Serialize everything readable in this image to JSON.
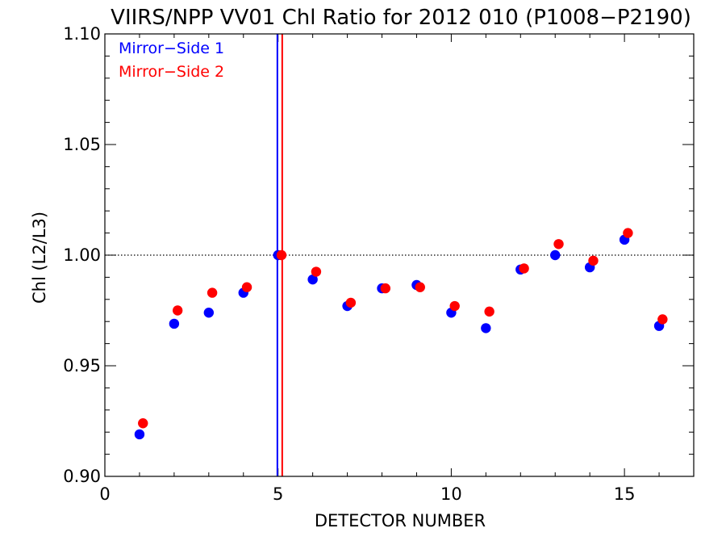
{
  "chart_data": {
    "type": "scatter",
    "title": "VIIRS/NPP VV01 Chl Ratio for 2012 010 (P1008−P2190)",
    "xlabel": "DETECTOR NUMBER",
    "ylabel": "Chl (L2/L3)",
    "xlim": [
      0,
      17
    ],
    "ylim": [
      0.9,
      1.1
    ],
    "x_ticks": [
      0,
      5,
      10,
      15
    ],
    "x_tick_labels": [
      "0",
      "5",
      "10",
      "15"
    ],
    "y_ticks": [
      0.9,
      0.95,
      1.0,
      1.05,
      1.1
    ],
    "y_tick_labels": [
      "0.90",
      "0.95",
      "1.00",
      "1.05",
      "1.10"
    ],
    "reference_line": {
      "y": 1.0,
      "style": "dotted"
    },
    "vertical_markers": [
      {
        "x": 4.98,
        "color": "#0000ff"
      },
      {
        "x": 5.12,
        "color": "#ff0000"
      }
    ],
    "legend": "top-left",
    "grid": false,
    "series": [
      {
        "name": "Mirror−Side 1",
        "color": "#0000ff",
        "x": [
          1,
          2,
          3,
          4,
          5,
          6,
          7,
          8,
          9,
          10,
          11,
          12,
          13,
          14,
          15,
          16
        ],
        "y": [
          0.919,
          0.969,
          0.974,
          0.983,
          1.0,
          0.989,
          0.977,
          0.985,
          0.9865,
          0.974,
          0.967,
          0.9935,
          1.0,
          0.9945,
          1.007,
          0.968
        ]
      },
      {
        "name": "Mirror−Side 2",
        "color": "#ff0000",
        "x": [
          1.1,
          2.1,
          3.1,
          4.1,
          5.1,
          6.1,
          7.1,
          8.1,
          9.1,
          10.1,
          11.1,
          12.1,
          13.1,
          14.1,
          15.1,
          16.1
        ],
        "y": [
          0.924,
          0.975,
          0.983,
          0.9855,
          1.0,
          0.9925,
          0.9785,
          0.985,
          0.9855,
          0.977,
          0.9745,
          0.994,
          1.005,
          0.9975,
          1.01,
          0.971
        ]
      }
    ]
  }
}
